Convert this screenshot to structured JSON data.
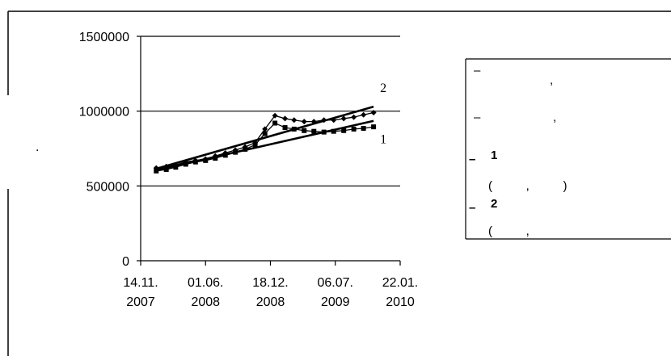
{
  "chart_data": {
    "type": "line",
    "ylim": [
      0,
      1500000
    ],
    "y_ticks": [
      "0",
      "500000",
      "1000000",
      "1500000"
    ],
    "x_ticks": [
      {
        "line1": "14.11.",
        "line2": "2007"
      },
      {
        "line1": "01.06.",
        "line2": "2008"
      },
      {
        "line1": "18.12.",
        "line2": "2008"
      },
      {
        "line1": "06.07.",
        "line2": "2009"
      },
      {
        "line1": "22.01.",
        "line2": "2010"
      }
    ],
    "x_tick_dates": [
      "2007-11-14",
      "2008-06-01",
      "2008-12-18",
      "2009-07-06",
      "2010-01-22"
    ],
    "grid": true,
    "series": [
      {
        "marker": "diamond",
        "x": [
          "2008-01-01",
          "2008-02-01",
          "2008-03-01",
          "2008-04-01",
          "2008-05-01",
          "2008-06-01",
          "2008-07-01",
          "2008-08-01",
          "2008-09-01",
          "2008-10-01",
          "2008-11-01",
          "2008-12-01",
          "2009-01-01",
          "2009-02-01",
          "2009-03-01",
          "2009-04-01",
          "2009-05-01",
          "2009-06-01",
          "2009-07-01",
          "2009-08-01",
          "2009-09-01",
          "2009-10-01",
          "2009-11-01"
        ],
        "values": [
          620000,
          630000,
          640000,
          660000,
          670000,
          680000,
          700000,
          720000,
          740000,
          760000,
          790000,
          880000,
          970000,
          950000,
          940000,
          930000,
          930000,
          940000,
          940000,
          950000,
          960000,
          975000,
          990000
        ]
      },
      {
        "marker": "square",
        "x": [
          "2008-01-01",
          "2008-02-01",
          "2008-03-01",
          "2008-04-01",
          "2008-05-01",
          "2008-06-01",
          "2008-07-01",
          "2008-08-01",
          "2008-09-01",
          "2008-10-01",
          "2008-11-01",
          "2008-12-01",
          "2009-01-01",
          "2009-02-01",
          "2009-03-01",
          "2009-04-01",
          "2009-05-01",
          "2009-06-01",
          "2009-07-01",
          "2009-08-01",
          "2009-09-01",
          "2009-10-01",
          "2009-11-01"
        ],
        "values": [
          600000,
          610000,
          625000,
          645000,
          660000,
          670000,
          685000,
          705000,
          725000,
          745000,
          775000,
          850000,
          920000,
          890000,
          880000,
          870000,
          865000,
          860000,
          865000,
          870000,
          880000,
          885000,
          895000
        ]
      }
    ],
    "trend_lines": [
      {
        "label": "1",
        "x": [
          "2008-01-01",
          "2009-11-01"
        ],
        "values": [
          605000,
          935000
        ]
      },
      {
        "label": "2",
        "x": [
          "2008-01-01",
          "2009-11-01"
        ],
        "values": [
          615000,
          1030000
        ]
      }
    ],
    "legend": {
      "position": "right",
      "items": [
        {
          "dash": "–",
          "text": ",",
          "bold_label": "",
          "second_line": ""
        },
        {
          "dash": "–",
          "text": ",",
          "bold_label": "",
          "second_line": ""
        },
        {
          "dash": "–",
          "text": "",
          "bold_label": "1",
          "second_line": "(          ,          )"
        },
        {
          "dash": "–",
          "text": "",
          "bold_label": "2",
          "second_line": "(          ,"
        }
      ]
    },
    "side_mark": "."
  }
}
